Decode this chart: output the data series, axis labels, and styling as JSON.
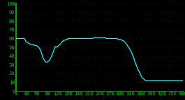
{
  "bg_color": "#000000",
  "line_color": "#00FFFF",
  "dot_color": "#007700",
  "axis_color": "#00CC00",
  "xlim": [
    0,
    480
  ],
  "ylim": [
    0,
    100
  ],
  "xticks": [
    0,
    30,
    60,
    90,
    120,
    150,
    180,
    210,
    240,
    270,
    300,
    330,
    360,
    390,
    420,
    450,
    480
  ],
  "yticks": [
    0,
    10,
    20,
    30,
    40,
    50,
    60,
    70,
    80,
    90,
    100
  ],
  "tick_fontsize": 5.0,
  "line_width": 0.9,
  "x_values": [
    0,
    5,
    10,
    15,
    20,
    25,
    30,
    35,
    40,
    45,
    50,
    55,
    60,
    63,
    66,
    69,
    72,
    75,
    78,
    81,
    84,
    87,
    90,
    93,
    96,
    99,
    102,
    105,
    108,
    111,
    114,
    117,
    120,
    123,
    126,
    129,
    132,
    135,
    138,
    141,
    144,
    147,
    150,
    155,
    160,
    165,
    170,
    175,
    180,
    185,
    190,
    195,
    200,
    205,
    210,
    215,
    220,
    225,
    230,
    235,
    240,
    245,
    250,
    255,
    260,
    265,
    270,
    275,
    280,
    285,
    290,
    295,
    300,
    305,
    310,
    315,
    320,
    325,
    330,
    333,
    336,
    339,
    342,
    345,
    348,
    351,
    354,
    357,
    360,
    363,
    366,
    369,
    372,
    375,
    378,
    381,
    384,
    387,
    390,
    420,
    450,
    480
  ],
  "y_values": [
    60,
    60,
    60,
    60,
    60,
    60,
    56,
    55,
    54,
    53,
    53,
    52,
    52,
    51,
    50,
    48,
    46,
    42,
    38,
    36,
    34,
    33,
    33,
    34,
    35,
    37,
    39,
    42,
    45,
    49,
    51,
    50,
    51,
    52,
    53,
    54,
    56,
    57,
    58,
    58,
    59,
    59,
    60,
    60,
    60,
    60,
    60,
    60,
    60,
    60,
    60,
    60,
    60,
    60,
    60,
    60,
    60,
    61,
    61,
    61,
    61,
    61,
    61,
    61,
    60,
    60,
    60,
    60,
    60,
    60,
    60,
    59,
    59,
    58,
    57,
    55,
    52,
    49,
    46,
    43,
    40,
    37,
    33,
    30,
    27,
    24,
    22,
    19,
    17,
    15,
    14,
    13,
    12,
    12,
    12,
    12,
    12,
    12,
    12,
    12,
    12,
    12
  ]
}
